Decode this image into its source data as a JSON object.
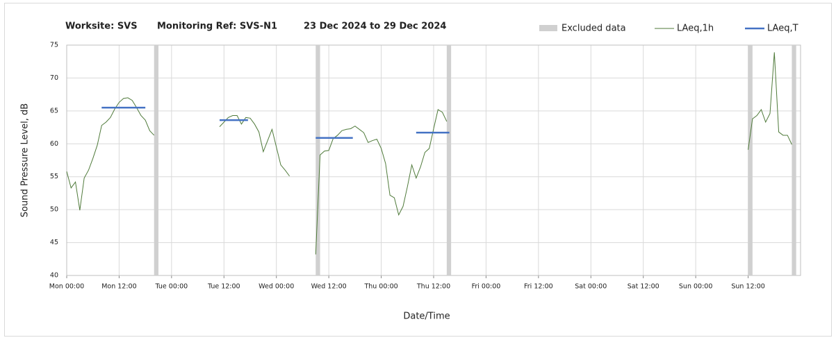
{
  "chart_data": {
    "type": "line",
    "title_parts": [
      "Worksite: SVS",
      "Monitoring Ref: SVS-N1",
      "23 Dec 2024 to 29 Dec 2024"
    ],
    "x_label": "Date/Time",
    "y_label": "Sound Pressure Level, dB",
    "xlim": [
      0,
      168
    ],
    "xticks": [
      {
        "value": 0,
        "label": "Mon 00:00"
      },
      {
        "value": 12,
        "label": "Mon 12:00"
      },
      {
        "value": 24,
        "label": "Tue 00:00"
      },
      {
        "value": 36,
        "label": "Tue 12:00"
      },
      {
        "value": 48,
        "label": "Wed 00:00"
      },
      {
        "value": 60,
        "label": "Wed 12:00"
      },
      {
        "value": 72,
        "label": "Thu 00:00"
      },
      {
        "value": 84,
        "label": "Thu 12:00"
      },
      {
        "value": 96,
        "label": "Fri 00:00"
      },
      {
        "value": 108,
        "label": "Fri 12:00"
      },
      {
        "value": 120,
        "label": "Sat 00:00"
      },
      {
        "value": 132,
        "label": "Sat 12:00"
      },
      {
        "value": 144,
        "label": "Sun 00:00"
      },
      {
        "value": 156,
        "label": "Sun 12:00"
      }
    ],
    "ylim": [
      40,
      75
    ],
    "yticks": [
      40,
      45,
      50,
      55,
      60,
      65,
      70,
      75
    ],
    "grid": true,
    "legend": "top-right",
    "excluded": {
      "name": "Excluded data",
      "color": "#d0d0d0",
      "ranges": [
        [
          20,
          21
        ],
        [
          57,
          58
        ],
        [
          87,
          88
        ],
        [
          156,
          157
        ],
        [
          166,
          167
        ]
      ]
    },
    "series": [
      {
        "name": "LAeq,1h",
        "color": "#4f7a3a",
        "width": 1,
        "x": [
          0,
          1,
          2,
          3,
          4,
          5,
          6,
          7,
          8,
          9,
          10,
          11,
          12,
          13,
          14,
          15,
          16,
          17,
          18,
          19,
          20,
          null,
          35,
          36,
          37,
          38,
          39,
          40,
          41,
          42,
          43,
          44,
          45,
          46,
          47,
          48,
          49,
          50,
          51,
          null,
          57,
          58,
          59,
          60,
          61,
          62,
          63,
          64,
          65,
          66,
          67,
          68,
          69,
          70,
          71,
          72,
          73,
          74,
          75,
          76,
          77,
          78,
          79,
          80,
          81,
          82,
          83,
          84,
          85,
          86,
          87,
          null,
          156,
          157,
          158,
          159,
          160,
          161,
          162,
          163,
          164,
          165,
          166
        ],
        "values": [
          55.8,
          53.3,
          54.2,
          49.9,
          54.8,
          56.0,
          57.8,
          59.8,
          62.8,
          63.3,
          64.0,
          65.3,
          66.3,
          66.9,
          67.0,
          66.6,
          65.5,
          64.3,
          63.6,
          62.0,
          61.3,
          null,
          62.6,
          63.3,
          64.0,
          64.3,
          64.3,
          63.0,
          64.0,
          63.9,
          63.0,
          61.8,
          58.8,
          60.5,
          62.2,
          59.5,
          56.8,
          56.0,
          55.1,
          null,
          43.2,
          58.3,
          58.9,
          59.0,
          60.8,
          61.3,
          62.0,
          62.2,
          62.3,
          62.7,
          62.2,
          61.7,
          60.2,
          60.5,
          60.7,
          59.3,
          57.0,
          52.2,
          51.8,
          49.2,
          50.5,
          53.5,
          56.8,
          54.8,
          56.5,
          58.7,
          59.3,
          62.3,
          65.2,
          64.8,
          63.4,
          null,
          59.1,
          63.8,
          64.3,
          65.2,
          63.3,
          64.6,
          73.9,
          61.8,
          61.3,
          61.3,
          59.9
        ]
      },
      {
        "name": "LAeq,T",
        "color": "#4472c4",
        "width": 2.5,
        "x": [
          8,
          18,
          null,
          35,
          41.5,
          null,
          57,
          65.5,
          null,
          80,
          87.6
        ],
        "values": [
          65.5,
          65.5,
          null,
          63.6,
          63.6,
          null,
          60.9,
          60.9,
          null,
          61.7,
          61.7
        ]
      }
    ]
  }
}
